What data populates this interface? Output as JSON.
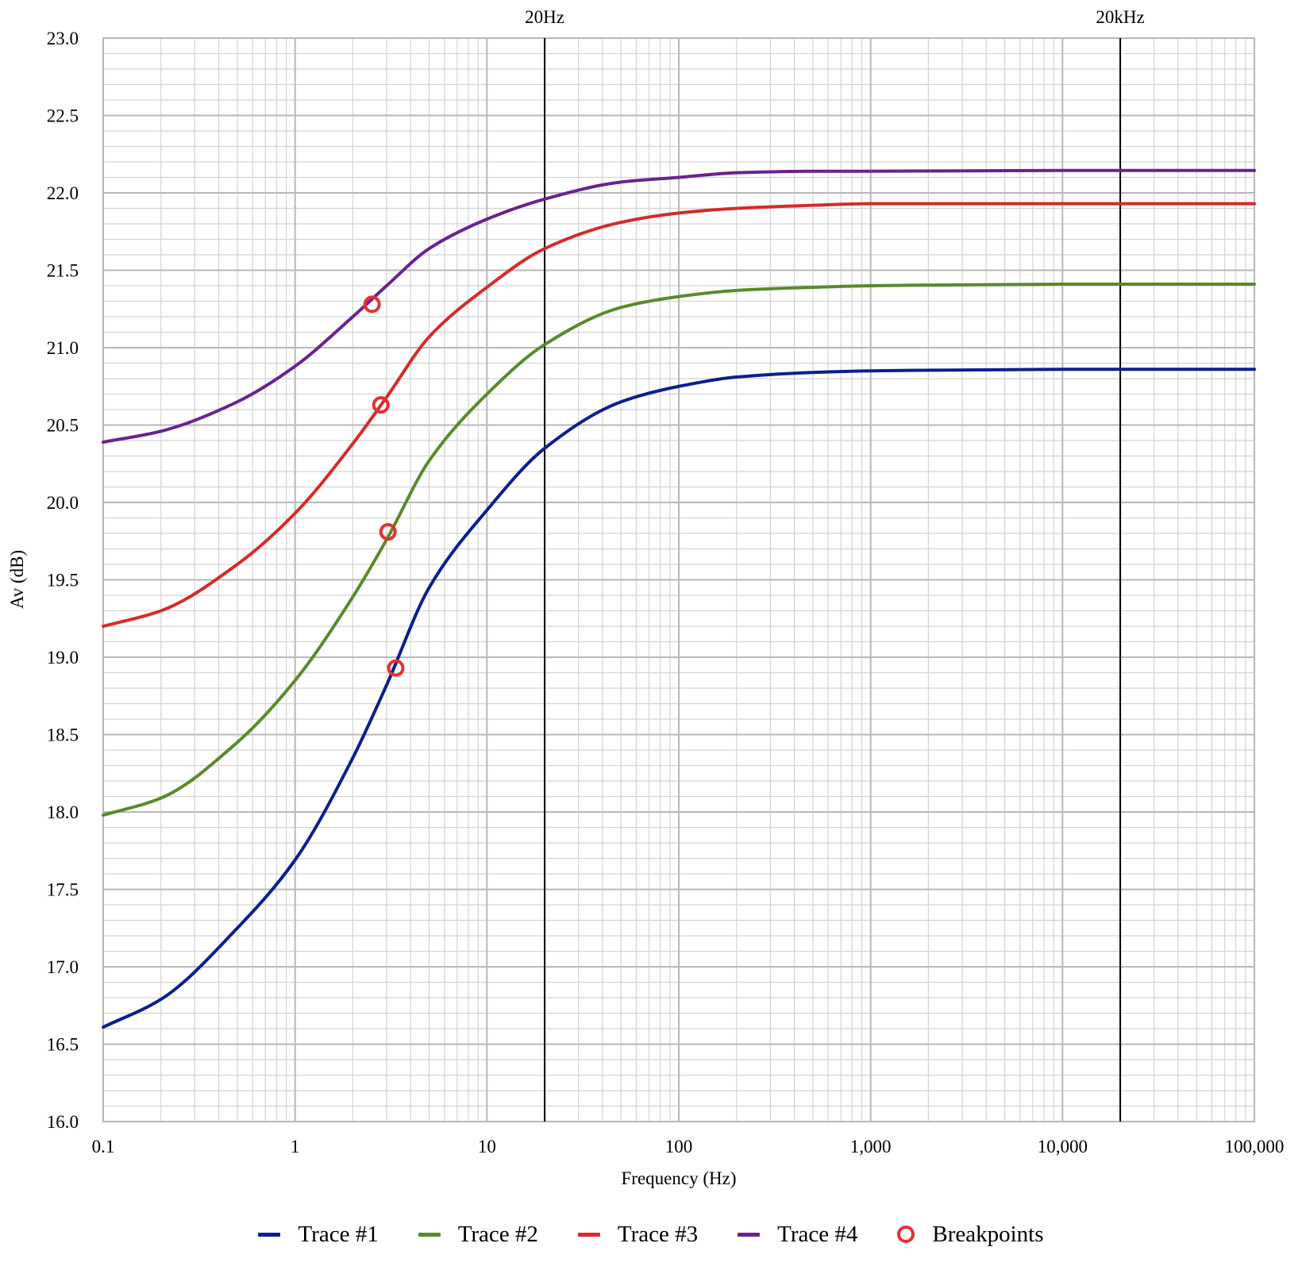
{
  "chart_data": {
    "type": "line",
    "xlabel": "Frequency (Hz)",
    "ylabel": "Av (dB)",
    "xscale": "log",
    "xlim": [
      0.1,
      100000
    ],
    "ylim": [
      16.0,
      23.0
    ],
    "grid": true,
    "legend_position": "bottom",
    "x_ticks": [
      "0.1",
      "1",
      "10",
      "100",
      "1,000",
      "10,000",
      "100,000"
    ],
    "y_ticks": [
      "16.0",
      "16.5",
      "17.0",
      "17.5",
      "18.0",
      "18.5",
      "19.0",
      "19.5",
      "20.0",
      "20.5",
      "21.0",
      "21.5",
      "22.0",
      "22.5",
      "23.0"
    ],
    "vertical_markers": [
      {
        "label": "20Hz",
        "x": 20
      },
      {
        "label": "20kHz",
        "x": 20000
      }
    ],
    "series": [
      {
        "name": "Trace #1",
        "color": "#0b1f8f",
        "x": [
          0.1,
          0.2,
          0.5,
          1,
          2,
          3,
          5,
          10,
          20,
          50,
          100,
          200,
          500,
          1000,
          10000,
          100000
        ],
        "values": [
          16.61,
          16.79,
          17.25,
          17.69,
          18.35,
          18.82,
          19.45,
          19.95,
          20.35,
          20.65,
          20.75,
          20.81,
          20.84,
          20.85,
          20.86,
          20.86
        ]
      },
      {
        "name": "Trace #2",
        "color": "#5a8a2a",
        "x": [
          0.1,
          0.2,
          0.5,
          1,
          2,
          3,
          5,
          10,
          20,
          50,
          100,
          200,
          500,
          1000,
          10000,
          100000
        ],
        "values": [
          17.98,
          18.09,
          18.45,
          18.85,
          19.39,
          19.76,
          20.27,
          20.7,
          21.02,
          21.26,
          21.33,
          21.37,
          21.39,
          21.4,
          21.41,
          21.41
        ]
      },
      {
        "name": "Trace #3",
        "color": "#d62a2a",
        "x": [
          0.1,
          0.2,
          0.5,
          1,
          2,
          3,
          5,
          10,
          20,
          50,
          100,
          200,
          500,
          1000,
          10000,
          100000
        ],
        "values": [
          19.2,
          19.3,
          19.6,
          19.93,
          20.38,
          20.68,
          21.07,
          21.39,
          21.64,
          21.81,
          21.87,
          21.9,
          21.92,
          21.93,
          21.93,
          21.93
        ]
      },
      {
        "name": "Trace #4",
        "color": "#6a2290",
        "x": [
          0.1,
          0.2,
          0.5,
          1,
          2,
          3,
          5,
          10,
          20,
          50,
          100,
          200,
          500,
          1000,
          10000,
          100000
        ],
        "values": [
          20.39,
          20.46,
          20.65,
          20.88,
          21.2,
          21.4,
          21.64,
          21.83,
          21.96,
          22.07,
          22.1,
          22.13,
          22.14,
          22.14,
          22.145,
          22.145
        ]
      }
    ],
    "breakpoints": {
      "name": "Breakpoints",
      "color": "#e83030",
      "points": [
        {
          "x": 2.52,
          "y": 21.28
        },
        {
          "x": 2.8,
          "y": 20.63
        },
        {
          "x": 3.05,
          "y": 19.81
        },
        {
          "x": 3.35,
          "y": 18.93
        }
      ]
    }
  }
}
